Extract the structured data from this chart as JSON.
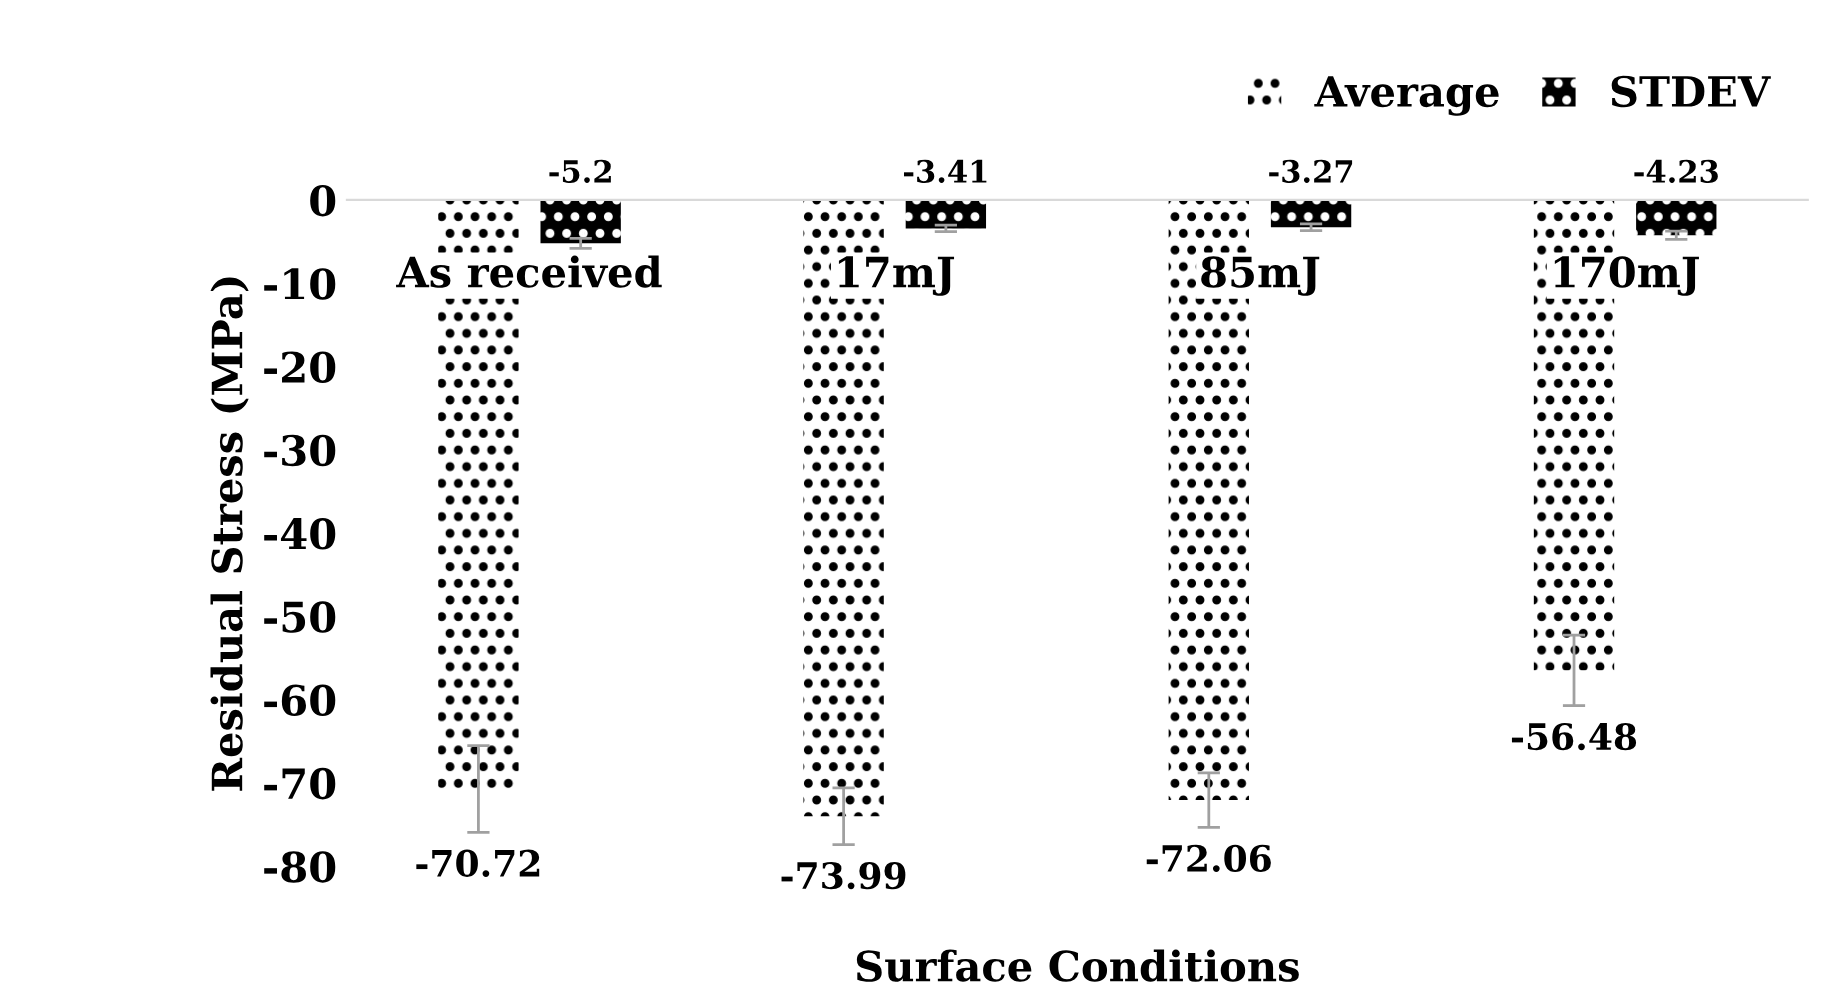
{
  "chart_data": {
    "type": "bar",
    "categories": [
      "As received",
      "17mJ",
      "85mJ",
      "170mJ"
    ],
    "series": [
      {
        "name": "Average",
        "color": "#ffffff",
        "values": [
          -70.72,
          -73.99,
          -72.06,
          -56.48
        ],
        "errors": [
          5.2,
          3.41,
          3.27,
          4.23
        ]
      },
      {
        "name": "STDEV",
        "color": "#000000",
        "values": [
          -5.2,
          -3.41,
          -3.27,
          -4.23
        ],
        "errors": [
          0.6,
          0.4,
          0.4,
          0.5
        ]
      }
    ],
    "xlabel": "Surface Conditions",
    "ylabel": "Residual Stress (MPa)",
    "ylim": [
      -80,
      0
    ],
    "yticks": [
      0,
      -10,
      -20,
      -30,
      -40,
      -50,
      -60,
      -70,
      -80
    ],
    "data_labels": true,
    "legend": "top right",
    "grid": false
  }
}
